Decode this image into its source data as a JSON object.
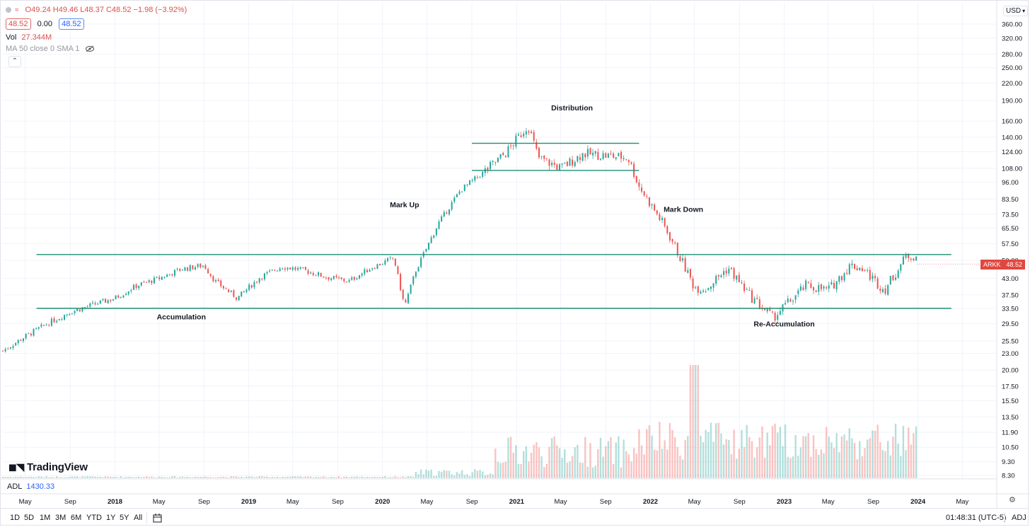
{
  "legend": {
    "ohlc": "O49.24 H49.46 L48.37 C48.52 −1.98 (−3.92%)",
    "bid": "48.52",
    "spread": "0.00",
    "ask": "48.52",
    "vol_label": "Vol",
    "vol_value": "27.344M",
    "ma_label": "MA 50 close 0 SMA 1",
    "collapse_icon": "chevron-up-icon"
  },
  "watermark": "TradingView",
  "indicator": {
    "label": "ADL",
    "value": "1430.33"
  },
  "price_axis": {
    "currency": "USD",
    "ticks": [
      "360.00",
      "320.00",
      "280.00",
      "250.00",
      "220.00",
      "190.00",
      "160.00",
      "140.00",
      "124.00",
      "108.00",
      "96.00",
      "83.50",
      "73.50",
      "65.50",
      "57.50",
      "50.00",
      "43.00",
      "37.50",
      "33.50",
      "29.50",
      "25.50",
      "23.00",
      "20.00",
      "17.50",
      "15.50",
      "13.50",
      "11.90",
      "10.50",
      "9.30",
      "8.30"
    ],
    "last_price_label": "48.52",
    "ticker": "ARKK"
  },
  "time_axis": {
    "ticks": [
      "May",
      "Sep",
      "2018",
      "May",
      "Sep",
      "2019",
      "May",
      "Sep",
      "2020",
      "May",
      "Sep",
      "2021",
      "May",
      "Sep",
      "2022",
      "May",
      "Sep",
      "2023",
      "May",
      "Sep",
      "2024",
      "May"
    ],
    "range_buttons": [
      "1D",
      "5D",
      "1M",
      "3M",
      "6M",
      "YTD",
      "1Y",
      "5Y",
      "All"
    ],
    "clock": "01:48:31 (UTC-5)",
    "adj": "ADJ"
  },
  "chart_data": {
    "type": "line",
    "symbol": "ARKK",
    "scale": "log",
    "grid": true,
    "price_range": [
      8.3,
      360
    ],
    "x_range": [
      "2017-03",
      "2024-08"
    ],
    "series": [
      {
        "x": [
          "2017-03",
          "2017-05",
          "2017-07",
          "2017-09",
          "2017-11",
          "2018-01",
          "2018-03",
          "2018-05",
          "2018-07",
          "2018-09",
          "2018-10",
          "2018-12",
          "2019-02",
          "2019-04",
          "2019-06",
          "2019-08",
          "2019-10",
          "2019-12",
          "2020-02",
          "2020-03",
          "2020-04",
          "2020-06",
          "2020-08",
          "2020-10",
          "2020-12",
          "2021-02",
          "2021-03",
          "2021-05",
          "2021-07",
          "2021-09",
          "2021-11",
          "2021-12",
          "2022-02",
          "2022-03",
          "2022-05",
          "2022-06",
          "2022-08",
          "2022-10",
          "2022-12",
          "2023-01",
          "2023-03",
          "2023-05",
          "2023-07",
          "2023-08",
          "2023-10",
          "2023-12"
        ],
        "close": [
          23.5,
          26.5,
          29.5,
          32.5,
          34.5,
          36.5,
          40.5,
          43.0,
          46.5,
          48.0,
          42.0,
          36.5,
          43.5,
          47.5,
          46.0,
          43.5,
          42.0,
          47.0,
          51.0,
          34.0,
          46.0,
          68.0,
          90.0,
          104.0,
          122.0,
          155.0,
          118.0,
          108.0,
          122.0,
          120.0,
          118.0,
          93.0,
          69.0,
          59.0,
          40.0,
          39.5,
          47.0,
          37.0,
          31.0,
          34.0,
          40.5,
          39.0,
          48.0,
          47.0,
          39.0,
          52.0
        ]
      }
    ],
    "annotations": {
      "levels": [
        {
          "label": "Accumulation",
          "price": 33.5,
          "from": "2017-06",
          "to": "2024-04"
        },
        {
          "label": "",
          "price": 52.5,
          "from": "2017-06",
          "to": "2024-04"
        },
        {
          "label": "",
          "price": 133.0,
          "from": "2020-09",
          "to": "2021-12"
        },
        {
          "label": "",
          "price": 106.0,
          "from": "2020-09",
          "to": "2021-12"
        }
      ],
      "labels": [
        {
          "text": "Distribution",
          "x": "2021-06",
          "price": 175
        },
        {
          "text": "Mark Up",
          "x": "2020-03",
          "price": 78
        },
        {
          "text": "Mark Down",
          "x": "2022-04",
          "price": 75
        },
        {
          "text": "Accumulation",
          "x": "2018-07",
          "price": 30.5
        },
        {
          "text": "Re-Accumulation",
          "x": "2023-01",
          "price": 28.8
        }
      ]
    }
  }
}
